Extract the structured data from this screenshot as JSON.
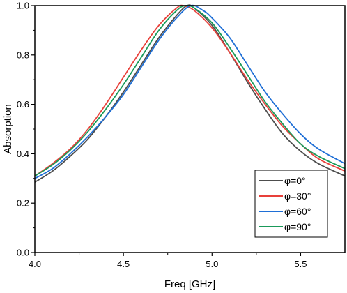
{
  "chart_data": {
    "type": "line",
    "xlabel": "Freq [GHz]",
    "ylabel": "Absorption",
    "xlim": [
      4.0,
      5.75
    ],
    "ylim": [
      0.0,
      1.0
    ],
    "xticks": [
      4.0,
      4.5,
      5.0,
      5.5
    ],
    "xtick_labels": [
      "4.0",
      "4.5",
      "5.0",
      "5.5"
    ],
    "yticks": [
      0.0,
      0.2,
      0.4,
      0.6,
      0.8,
      1.0
    ],
    "ytick_labels": [
      "0.0",
      "0.2",
      "0.4",
      "0.6",
      "0.8",
      "1.0"
    ],
    "grid": false,
    "legend_position": "bottom-right",
    "series": [
      {
        "name": "φ=0°",
        "color": "#4d4d4d",
        "x": [
          4.0,
          4.1,
          4.2,
          4.3,
          4.4,
          4.5,
          4.6,
          4.7,
          4.8,
          4.86,
          4.9,
          5.0,
          5.1,
          5.2,
          5.3,
          5.4,
          5.5,
          5.6,
          5.75
        ],
        "y": [
          0.285,
          0.33,
          0.39,
          0.46,
          0.55,
          0.65,
          0.76,
          0.87,
          0.96,
          1.0,
          0.99,
          0.92,
          0.81,
          0.69,
          0.58,
          0.48,
          0.41,
          0.36,
          0.31
        ]
      },
      {
        "name": "φ=30°",
        "color": "#e8403a",
        "x": [
          4.0,
          4.1,
          4.2,
          4.3,
          4.4,
          4.5,
          4.6,
          4.7,
          4.8,
          4.84,
          4.9,
          5.0,
          5.1,
          5.2,
          5.3,
          5.4,
          5.5,
          5.6,
          5.75
        ],
        "y": [
          0.31,
          0.36,
          0.42,
          0.5,
          0.6,
          0.71,
          0.82,
          0.92,
          0.99,
          1.0,
          0.98,
          0.91,
          0.81,
          0.7,
          0.6,
          0.51,
          0.44,
          0.38,
          0.33
        ]
      },
      {
        "name": "φ=60°",
        "color": "#1f6fd6",
        "x": [
          4.0,
          4.1,
          4.2,
          4.3,
          4.4,
          4.5,
          4.6,
          4.7,
          4.8,
          4.88,
          4.95,
          5.0,
          5.1,
          5.2,
          5.3,
          5.4,
          5.5,
          5.6,
          5.75
        ],
        "y": [
          0.3,
          0.34,
          0.4,
          0.47,
          0.55,
          0.64,
          0.75,
          0.86,
          0.95,
          1.0,
          0.98,
          0.95,
          0.87,
          0.76,
          0.65,
          0.56,
          0.48,
          0.42,
          0.36
        ]
      },
      {
        "name": "φ=90°",
        "color": "#1a9a5a",
        "x": [
          4.0,
          4.1,
          4.2,
          4.3,
          4.4,
          4.5,
          4.6,
          4.7,
          4.8,
          4.85,
          4.9,
          5.0,
          5.1,
          5.2,
          5.3,
          5.4,
          5.5,
          5.6,
          5.75
        ],
        "y": [
          0.31,
          0.355,
          0.415,
          0.49,
          0.58,
          0.68,
          0.79,
          0.9,
          0.98,
          1.0,
          0.99,
          0.93,
          0.83,
          0.72,
          0.61,
          0.52,
          0.44,
          0.39,
          0.34
        ]
      }
    ]
  }
}
